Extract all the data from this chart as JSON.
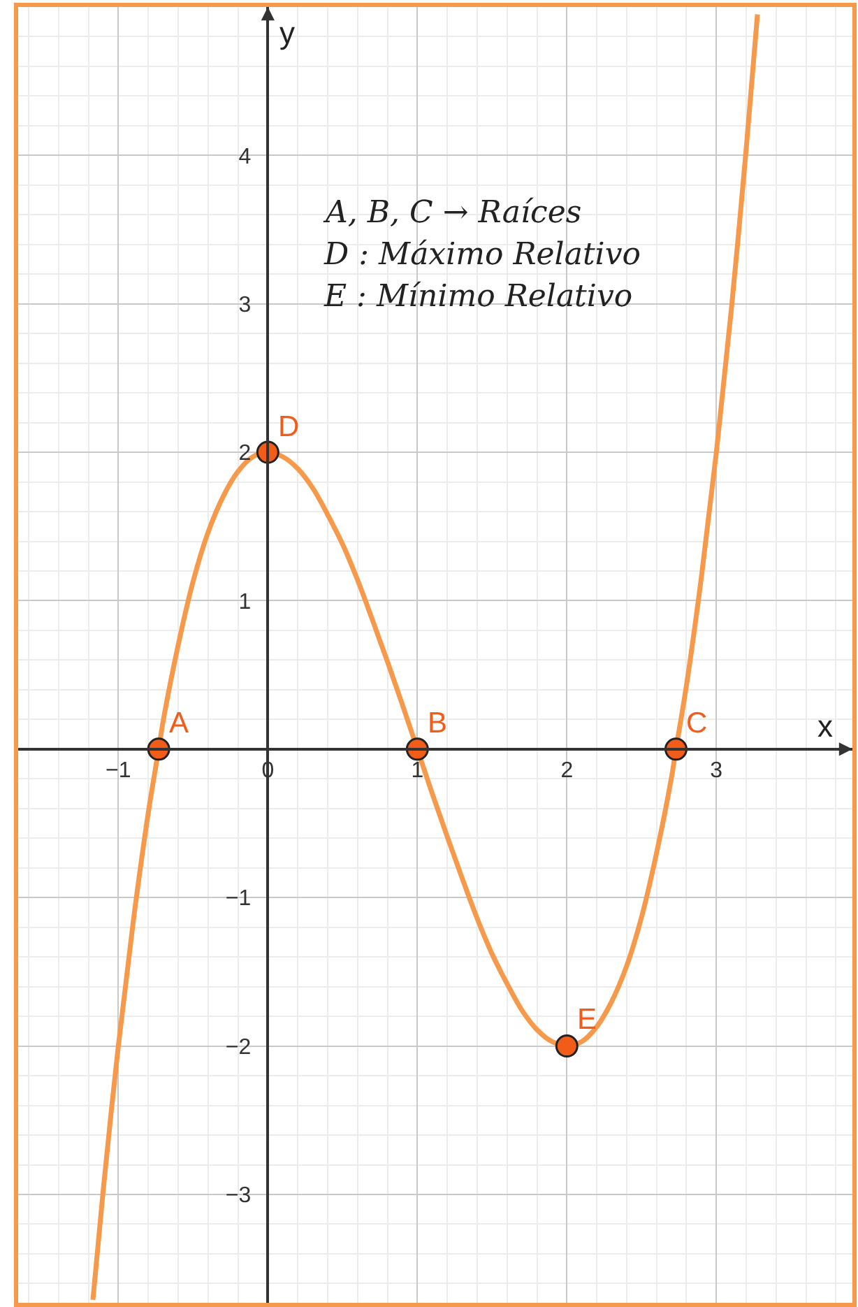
{
  "chart_data": {
    "type": "line",
    "xlabel": "x",
    "ylabel": "y",
    "xlim": [
      -1.67,
      3.91
    ],
    "ylim": [
      -3.73,
      5.0
    ],
    "xticks": [
      {
        "value": -1,
        "label": "−1"
      },
      0,
      1,
      2,
      3
    ],
    "yticks": [
      {
        "value": -3,
        "label": "−3"
      },
      {
        "value": -2,
        "label": "−2"
      },
      {
        "value": -1,
        "label": "−1"
      },
      1,
      2,
      3,
      4
    ],
    "grid": true,
    "series": [
      {
        "color": "#f7994b",
        "x": [
          -1.17,
          -1.1,
          -1.0,
          -0.9,
          -0.8,
          -0.73,
          -0.7,
          -0.6,
          -0.5,
          -0.4,
          -0.3,
          -0.2,
          -0.1,
          0,
          0.1,
          0.2,
          0.3,
          0.4,
          0.5,
          0.6,
          0.7,
          0.8,
          0.9,
          1.0,
          1.1,
          1.2,
          1.3,
          1.4,
          1.5,
          1.6,
          1.7,
          1.8,
          1.9,
          2.0,
          2.1,
          2.2,
          2.3,
          2.4,
          2.5,
          2.6,
          2.7,
          2.73,
          2.8,
          2.9,
          3.0,
          3.1,
          3.2,
          3.275
        ],
        "values": [
          -3.71,
          -2.96,
          -2.0,
          -1.16,
          -0.43,
          0,
          0.19,
          0.7,
          1.13,
          1.46,
          1.7,
          1.87,
          1.97,
          2,
          1.97,
          1.89,
          1.76,
          1.58,
          1.38,
          1.14,
          0.87,
          0.59,
          0.3,
          0,
          -0.3,
          -0.59,
          -0.87,
          -1.14,
          -1.38,
          -1.58,
          -1.76,
          -1.89,
          -1.97,
          -2,
          -1.97,
          -1.87,
          -1.7,
          -1.46,
          -1.13,
          -0.7,
          -0.19,
          0,
          0.43,
          1.16,
          2,
          2.96,
          4.05,
          4.95
        ]
      },
      {
        "type": "scatter",
        "color": "#f25c19",
        "marker": "circle",
        "x": [
          -0.73,
          1,
          2.73,
          0,
          2
        ],
        "values": [
          0,
          0,
          0,
          2,
          -2
        ]
      }
    ],
    "annotations": [
      "A, B, C → Raíces",
      "D : Máximo Relativo",
      "E : Mínimo Relativo",
      {
        "text": "A",
        "x": -0.73,
        "y": 0
      },
      {
        "text": "B",
        "x": 1,
        "y": 0
      },
      {
        "text": "C",
        "x": 2.73,
        "y": 0
      },
      {
        "text": "D",
        "x": 0,
        "y": 2
      },
      {
        "text": "E",
        "x": 2,
        "y": -2
      }
    ]
  }
}
